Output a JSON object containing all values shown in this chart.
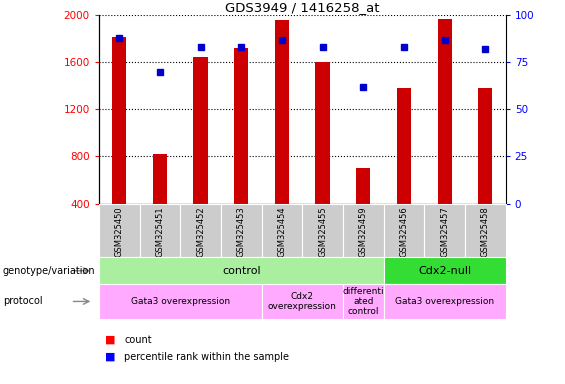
{
  "title": "GDS3949 / 1416258_at",
  "samples": [
    "GSM325450",
    "GSM325451",
    "GSM325452",
    "GSM325453",
    "GSM325454",
    "GSM325455",
    "GSM325459",
    "GSM325456",
    "GSM325457",
    "GSM325458"
  ],
  "counts": [
    1820,
    820,
    1650,
    1720,
    1960,
    1600,
    700,
    1380,
    1970,
    1380
  ],
  "percentile_ranks": [
    88,
    70,
    83,
    83,
    87,
    83,
    62,
    83,
    87,
    82
  ],
  "y_min": 400,
  "y_max": 2000,
  "y_ticks": [
    400,
    800,
    1200,
    1600,
    2000
  ],
  "y2_ticks": [
    0,
    25,
    50,
    75,
    100
  ],
  "bar_color": "#cc0000",
  "dot_color": "#0000cc",
  "bar_width": 0.35,
  "genotype_groups": [
    {
      "text": "control",
      "start": 0,
      "end": 6,
      "color": "#aaeea0"
    },
    {
      "text": "Cdx2-null",
      "start": 7,
      "end": 9,
      "color": "#33dd33"
    }
  ],
  "protocol_groups": [
    {
      "text": "Gata3 overexpression",
      "start": 0,
      "end": 3,
      "color": "#ffaaff"
    },
    {
      "text": "Cdx2\noverexpression",
      "start": 4,
      "end": 5,
      "color": "#ffaaff"
    },
    {
      "text": "differenti\nated\ncontrol",
      "start": 6,
      "end": 6,
      "color": "#ffaaff"
    },
    {
      "text": "Gata3 overexpression",
      "start": 7,
      "end": 9,
      "color": "#ffaaff"
    }
  ],
  "tick_box_color": "#cccccc",
  "background_color": "#ffffff"
}
